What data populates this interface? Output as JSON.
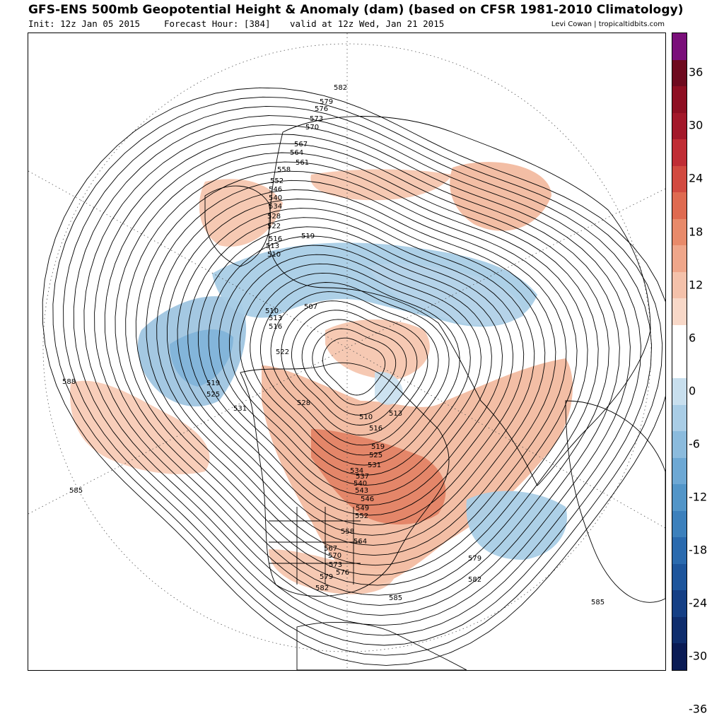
{
  "title": "GFS-ENS 500mb Geopotential Height & Anomaly (dam) (based on CFSR 1981-2010 Climatology)",
  "init": "Init: 12z Jan 05 2015",
  "forecast_hour": "Forecast Hour: [384]",
  "valid": "valid at 12z Wed, Jan 21 2015",
  "credit": "Levi Cowan | tropicaltidbits.com",
  "colorbar": {
    "tick_labels": [
      "36",
      "30",
      "24",
      "18",
      "12",
      "6",
      "0",
      "-6",
      "-12",
      "-18",
      "-24",
      "-30",
      "-36"
    ],
    "colors": [
      "#7a0f7a",
      "#6e0a1e",
      "#8e0f22",
      "#a3182a",
      "#c02d35",
      "#d24a40",
      "#df6a50",
      "#e88a6a",
      "#efa68a",
      "#f4c1aa",
      "#f8d8c8",
      "#ffffff",
      "#ffffff",
      "#c8dfee",
      "#a9cde6",
      "#8bbbdd",
      "#6da8d4",
      "#5295c8",
      "#3c80bc",
      "#2a6aae",
      "#1d559c",
      "#153f85",
      "#0f2d6d",
      "#0a1b55"
    ]
  },
  "height_labels": [
    "582",
    "579",
    "576",
    "573",
    "570",
    "567",
    "564",
    "561",
    "558",
    "552",
    "546",
    "540",
    "534",
    "528",
    "522",
    "519",
    "516",
    "513",
    "510",
    "507",
    "510",
    "513",
    "516",
    "522",
    "519",
    "525",
    "531",
    "528",
    "510",
    "513",
    "516",
    "519",
    "525",
    "531",
    "534",
    "537",
    "540",
    "543",
    "546",
    "549",
    "552",
    "558",
    "564",
    "567",
    "570",
    "573",
    "576",
    "579",
    "582",
    "585",
    "588",
    "585",
    "579",
    "582",
    "585"
  ]
}
